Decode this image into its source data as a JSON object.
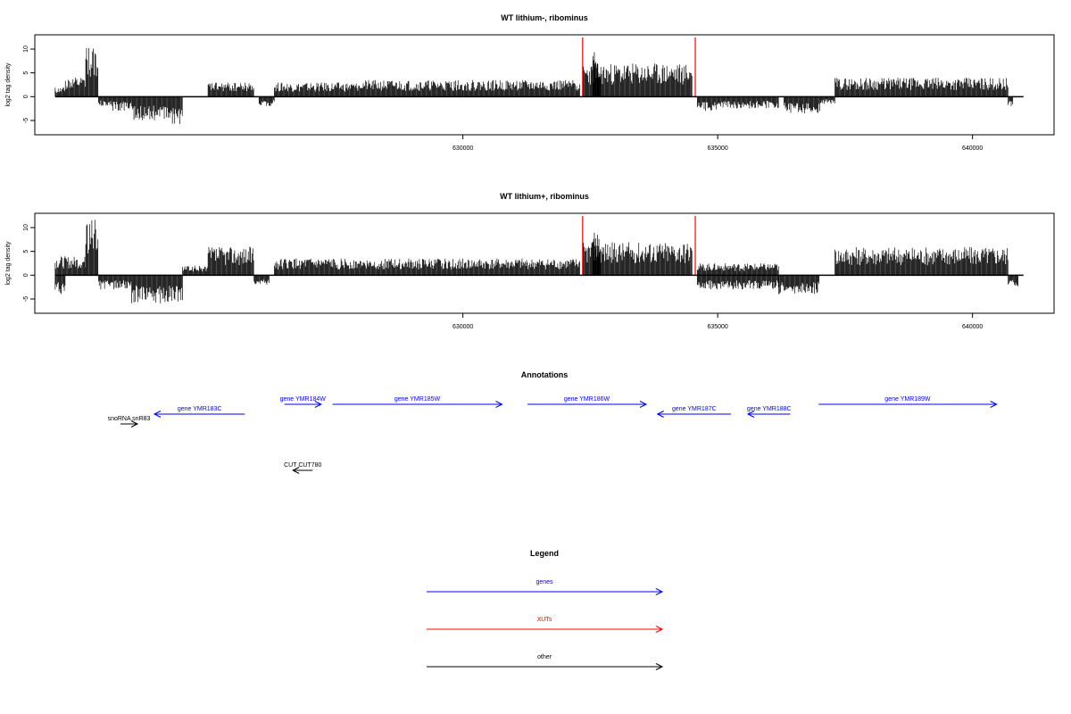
{
  "chart_data": [
    {
      "type": "bar",
      "title": "WT lithium-, ribominus",
      "xlabel": "",
      "ylabel": "log2 tag density",
      "xlim": [
        621600,
        641600
      ],
      "ylim": [
        -8,
        13
      ],
      "yticks": [
        -5,
        0,
        5,
        10
      ],
      "xticks": [
        630000,
        635000,
        640000
      ],
      "marker_color": "#ff0000",
      "markers_x": [
        632350,
        634560
      ],
      "segments": [
        {
          "x0": 622000,
          "x1": 622200,
          "y": 2,
          "seed": 11
        },
        {
          "x0": 622200,
          "x1": 622600,
          "y": 4,
          "seed": 12
        },
        {
          "x0": 622600,
          "x1": 622850,
          "y": 11,
          "seed": 13
        },
        {
          "x0": 622850,
          "x1": 623100,
          "y": -2,
          "seed": 14
        },
        {
          "x0": 623100,
          "x1": 623500,
          "y": -3,
          "seed": 15
        },
        {
          "x0": 623500,
          "x1": 624300,
          "y": -5,
          "seed": 16
        },
        {
          "x0": 624300,
          "x1": 624500,
          "y": -6,
          "seed": 17
        },
        {
          "x0": 625000,
          "x1": 625900,
          "y": 3,
          "seed": 18
        },
        {
          "x0": 626000,
          "x1": 626300,
          "y": -2,
          "seed": 19
        },
        {
          "x0": 626300,
          "x1": 628000,
          "y": 3,
          "seed": 20
        },
        {
          "x0": 628000,
          "x1": 630000,
          "y": 3.5,
          "seed": 21
        },
        {
          "x0": 630000,
          "x1": 632300,
          "y": 3.5,
          "seed": 22
        },
        {
          "x0": 632350,
          "x1": 634500,
          "y": 7,
          "seed": 23
        },
        {
          "x0": 632550,
          "x1": 632700,
          "y": 10,
          "seed": 24
        },
        {
          "x0": 634600,
          "x1": 635000,
          "y": -3,
          "seed": 25
        },
        {
          "x0": 635000,
          "x1": 636200,
          "y": -2.5,
          "seed": 26
        },
        {
          "x0": 636300,
          "x1": 637000,
          "y": -3.5,
          "seed": 27
        },
        {
          "x0": 637000,
          "x1": 637300,
          "y": -1.5,
          "seed": 28
        },
        {
          "x0": 637300,
          "x1": 640700,
          "y": 4,
          "seed": 29
        },
        {
          "x0": 640700,
          "x1": 640800,
          "y": -2,
          "seed": 30
        }
      ]
    },
    {
      "type": "bar",
      "title": "WT lithium+, ribominus",
      "xlabel": "",
      "ylabel": "log2 tag density",
      "xlim": [
        621600,
        641600
      ],
      "ylim": [
        -8,
        13
      ],
      "yticks": [
        -5,
        0,
        5,
        10
      ],
      "xticks": [
        630000,
        635000,
        640000
      ],
      "marker_color": "#ff0000",
      "markers_x": [
        632350,
        634560
      ],
      "segments": [
        {
          "x0": 622000,
          "x1": 622200,
          "y": -4,
          "seed": 31
        },
        {
          "x0": 622000,
          "x1": 622600,
          "y": 4,
          "seed": 32
        },
        {
          "x0": 622600,
          "x1": 622850,
          "y": 12,
          "seed": 33
        },
        {
          "x0": 622850,
          "x1": 623500,
          "y": -3,
          "seed": 34
        },
        {
          "x0": 623500,
          "x1": 624500,
          "y": -6,
          "seed": 35
        },
        {
          "x0": 624500,
          "x1": 625000,
          "y": 2,
          "seed": 36
        },
        {
          "x0": 625000,
          "x1": 625900,
          "y": 6,
          "seed": 37
        },
        {
          "x0": 625900,
          "x1": 626200,
          "y": -2,
          "seed": 38
        },
        {
          "x0": 626300,
          "x1": 628000,
          "y": 3.5,
          "seed": 39
        },
        {
          "x0": 628000,
          "x1": 630000,
          "y": 3.5,
          "seed": 40
        },
        {
          "x0": 630000,
          "x1": 632300,
          "y": 3.5,
          "seed": 41
        },
        {
          "x0": 632350,
          "x1": 634500,
          "y": 7,
          "seed": 42
        },
        {
          "x0": 632550,
          "x1": 632700,
          "y": 9,
          "seed": 43
        },
        {
          "x0": 634600,
          "x1": 635000,
          "y": -3,
          "seed": 44
        },
        {
          "x0": 635000,
          "x1": 636200,
          "y": -3,
          "seed": 45
        },
        {
          "x0": 634600,
          "x1": 636200,
          "y": 2.5,
          "seed": 46
        },
        {
          "x0": 636200,
          "x1": 637000,
          "y": -4,
          "seed": 47
        },
        {
          "x0": 637300,
          "x1": 640700,
          "y": 6,
          "seed": 48
        },
        {
          "x0": 640700,
          "x1": 640900,
          "y": -2.5,
          "seed": 49
        }
      ]
    }
  ],
  "annotations": {
    "title": "Annotations",
    "items": [
      {
        "label": "gene YMR183C",
        "strand": "-",
        "x0": 622100,
        "x1": 623700,
        "row": 1,
        "color": "#0000ff"
      },
      {
        "label": "gene YMR184W",
        "strand": "+",
        "x0": 624400,
        "x1": 625050,
        "row": 0,
        "color": "#0000ff"
      },
      {
        "label": "gene YMR185W",
        "strand": "+",
        "x0": 625250,
        "x1": 628250,
        "row": 0,
        "color": "#0000ff"
      },
      {
        "label": "gene YMR186W",
        "strand": "+",
        "x0": 628700,
        "x1": 630800,
        "row": 0,
        "color": "#0000ff"
      },
      {
        "label": "gene YMR187C",
        "strand": "-",
        "x0": 631000,
        "x1": 632300,
        "row": 1,
        "color": "#0000ff"
      },
      {
        "label": "gene YMR188C",
        "strand": "-",
        "x0": 632600,
        "x1": 633350,
        "row": 1,
        "color": "#0000ff"
      },
      {
        "label": "gene YMR189W",
        "strand": "+",
        "x0": 633850,
        "x1": 637000,
        "row": 0,
        "color": "#0000ff"
      },
      {
        "label": "snoRNA snR83",
        "strand": "+",
        "x0": 621500,
        "x1": 621800,
        "row": 2,
        "color": "#000000"
      },
      {
        "label": "CUT CUT780",
        "strand": "-",
        "x0": 624550,
        "x1": 624900,
        "row": 3,
        "color": "#000000"
      }
    ]
  },
  "legend": {
    "title": "Legend",
    "items": [
      {
        "label": "genes",
        "color": "#0000ff"
      },
      {
        "label": "XUTs",
        "color": "#ff0000"
      },
      {
        "label": "other",
        "color": "#000000"
      }
    ]
  }
}
